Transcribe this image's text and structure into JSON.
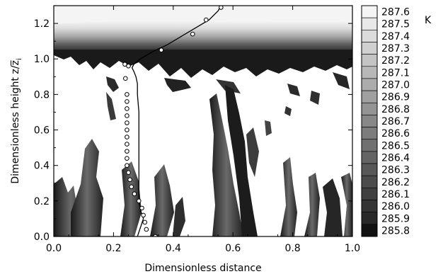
{
  "chart_data": {
    "type": "heatmap",
    "xlabel": "Dimensionless distance",
    "ylabel": "Dimensionless height z/z̅",
    "ylabel_sub": "i",
    "xlim": [
      0.0,
      1.0
    ],
    "ylim": [
      0.0,
      1.3
    ],
    "x_ticks": [
      "0.0",
      "0.2",
      "0.4",
      "0.6",
      "0.8",
      "1.0"
    ],
    "y_ticks": [
      "0.0",
      "0.2",
      "0.4",
      "0.6",
      "0.8",
      "1.0",
      "1.2"
    ],
    "x_tick_values": [
      0.0,
      0.2,
      0.4,
      0.6,
      0.8,
      1.0
    ],
    "y_tick_values": [
      0.0,
      0.2,
      0.4,
      0.6,
      0.8,
      1.0,
      1.2
    ],
    "colorbar": {
      "unit": "K",
      "levels": [
        "287.6",
        "287.5",
        "287.4",
        "287.3",
        "287.2",
        "287.1",
        "287.0",
        "286.9",
        "286.8",
        "286.7",
        "286.6",
        "286.5",
        "286.4",
        "286.3",
        "286.2",
        "286.1",
        "286.0",
        "285.9",
        "285.8"
      ],
      "colors": [
        "#f4f4f4",
        "#e8e8e8",
        "#dcdcdc",
        "#d0d0d0",
        "#c4c4c4",
        "#b8b8b8",
        "#acacac",
        "#a0a0a0",
        "#949494",
        "#888888",
        "#7c7c7c",
        "#707070",
        "#646464",
        "#585858",
        "#4c4c4c",
        "#404040",
        "#343434",
        "#282828",
        "#111111"
      ]
    },
    "series": [
      {
        "style": "line",
        "points": [
          [
            0.28,
            0.0
          ],
          [
            0.29,
            0.05
          ],
          [
            0.3,
            0.1
          ],
          [
            0.29,
            0.15
          ],
          [
            0.285,
            0.2
          ],
          [
            0.285,
            0.3
          ],
          [
            0.285,
            0.4
          ],
          [
            0.285,
            0.5
          ],
          [
            0.285,
            0.6
          ],
          [
            0.285,
            0.7
          ],
          [
            0.28,
            0.8
          ],
          [
            0.28,
            0.86
          ],
          [
            0.275,
            0.9
          ],
          [
            0.268,
            0.93
          ],
          [
            0.262,
            0.95
          ],
          [
            0.268,
            0.97
          ],
          [
            0.29,
            1.0
          ],
          [
            0.33,
            1.04
          ],
          [
            0.38,
            1.08
          ],
          [
            0.43,
            1.13
          ],
          [
            0.48,
            1.18
          ],
          [
            0.52,
            1.22
          ],
          [
            0.55,
            1.27
          ],
          [
            0.56,
            1.3
          ]
        ]
      },
      {
        "style": "markers",
        "points": [
          [
            0.34,
            0.0
          ],
          [
            0.31,
            0.04
          ],
          [
            0.305,
            0.08
          ],
          [
            0.3,
            0.12
          ],
          [
            0.295,
            0.16
          ],
          [
            0.285,
            0.2
          ],
          [
            0.27,
            0.24
          ],
          [
            0.26,
            0.28
          ],
          [
            0.255,
            0.32
          ],
          [
            0.25,
            0.36
          ],
          [
            0.245,
            0.4
          ],
          [
            0.245,
            0.44
          ],
          [
            0.245,
            0.48
          ],
          [
            0.245,
            0.52
          ],
          [
            0.245,
            0.56
          ],
          [
            0.245,
            0.6
          ],
          [
            0.245,
            0.64
          ],
          [
            0.245,
            0.68
          ],
          [
            0.245,
            0.72
          ],
          [
            0.245,
            0.76
          ],
          [
            0.245,
            0.8
          ],
          [
            0.24,
            0.89
          ],
          [
            0.238,
            0.97
          ],
          [
            0.25,
            0.96
          ],
          [
            0.36,
            1.05
          ],
          [
            0.465,
            1.14
          ],
          [
            0.51,
            1.22
          ],
          [
            0.56,
            1.29
          ]
        ]
      }
    ]
  }
}
